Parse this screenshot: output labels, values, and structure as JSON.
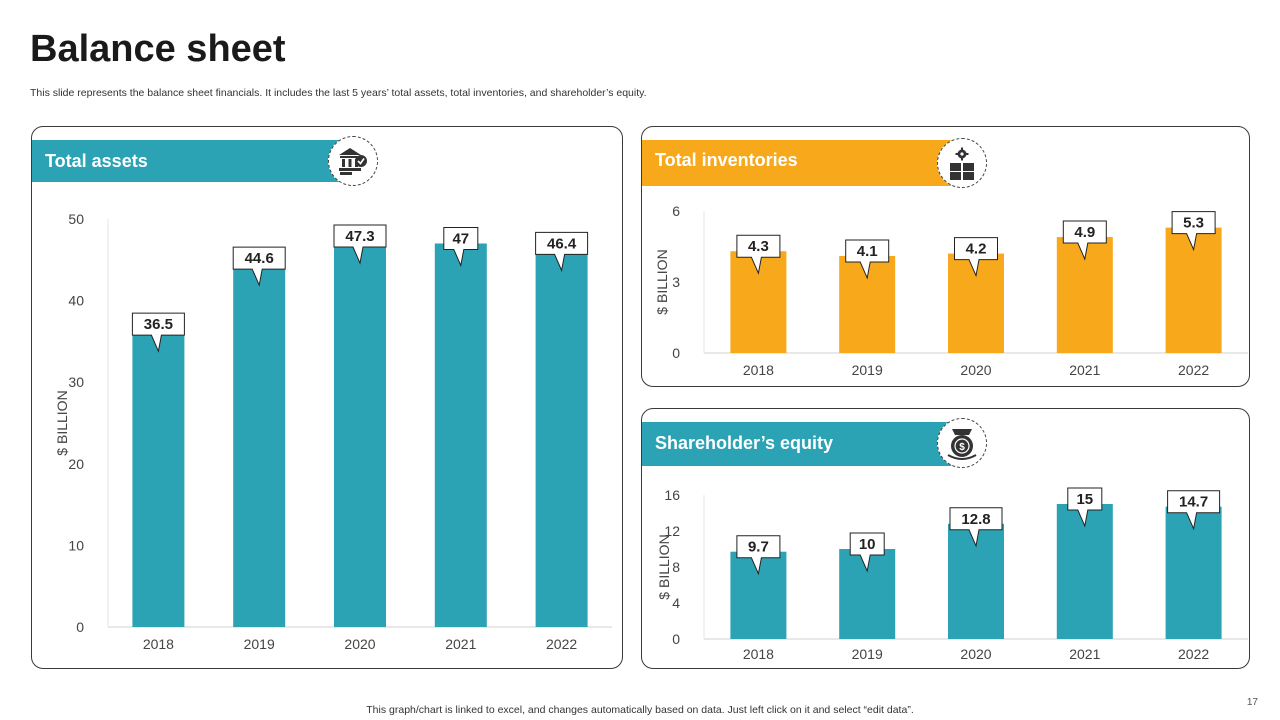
{
  "page": {
    "title": "Balance sheet",
    "subtitle": "This slide represents the balance sheet financials. It includes the last 5 years’ total assets, total inventories, and shareholder’s equity.",
    "footer": "This graph/chart is linked to excel,  and changes automatically based on data. Just left click on it and select “edit data”.",
    "page_number": "17"
  },
  "panels": {
    "assets": {
      "label": "Total assets",
      "icon": "bank-money-icon"
    },
    "inventories": {
      "label": "Total inventories",
      "icon": "boxes-gear-icon"
    },
    "equity": {
      "label": "Shareholder’s equity",
      "icon": "money-bag-icon"
    }
  },
  "colors": {
    "teal": "#2BA3B4",
    "orange": "#F7A81B"
  },
  "chart_data": [
    {
      "type": "bar",
      "title": "Total assets",
      "categories": [
        "2018",
        "2019",
        "2020",
        "2021",
        "2022"
      ],
      "values": [
        36.5,
        44.6,
        47.3,
        47,
        46.4
      ],
      "data_labels": [
        "36.5",
        "44.6",
        "47.3",
        "47",
        "46.4"
      ],
      "ylabel": "$ BILLION",
      "ylim": [
        0,
        50
      ],
      "yticks": [
        0,
        10,
        20,
        30,
        40,
        50
      ],
      "color": "#2BA3B4",
      "grid": false
    },
    {
      "type": "bar",
      "title": "Total inventories",
      "categories": [
        "2018",
        "2019",
        "2020",
        "2021",
        "2022"
      ],
      "values": [
        4.3,
        4.1,
        4.2,
        4.9,
        5.3
      ],
      "data_labels": [
        "4.3",
        "4.1",
        "4.2",
        "4.9",
        "5.3"
      ],
      "ylabel": "$ BILLION",
      "ylim": [
        0,
        6
      ],
      "yticks": [
        0,
        3,
        6
      ],
      "color": "#F7A81B",
      "grid": false
    },
    {
      "type": "bar",
      "title": "Shareholder’s equity",
      "categories": [
        "2018",
        "2019",
        "2020",
        "2021",
        "2022"
      ],
      "values": [
        9.7,
        10,
        12.8,
        15,
        14.7
      ],
      "data_labels": [
        "9.7",
        "10",
        "12.8",
        "15",
        "14.7"
      ],
      "ylabel": "$ BILLION",
      "ylim": [
        0,
        16
      ],
      "yticks": [
        0,
        4,
        8,
        12,
        16
      ],
      "color": "#2BA3B4",
      "grid": false
    }
  ]
}
